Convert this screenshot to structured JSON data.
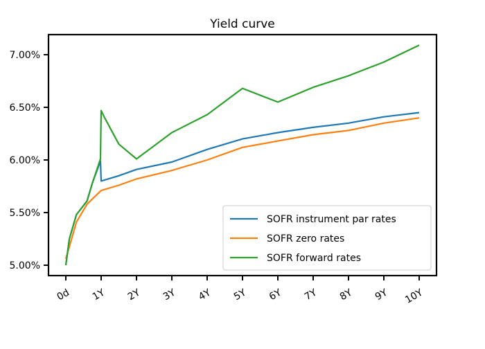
{
  "chart_data": {
    "type": "line",
    "title": "Yield curve",
    "xlabel": "",
    "ylabel": "",
    "x_ticks": [
      0,
      1,
      2,
      3,
      4,
      5,
      6,
      7,
      8,
      9,
      10
    ],
    "x_tick_labels": [
      "0d",
      "1Y",
      "2Y",
      "3Y",
      "4Y",
      "5Y",
      "6Y",
      "7Y",
      "8Y",
      "9Y",
      "10Y"
    ],
    "y_ticks": [
      5.0,
      5.5,
      6.0,
      6.5,
      7.0
    ],
    "y_tick_labels": [
      "5.00%",
      "5.50%",
      "6.00%",
      "6.50%",
      "7.00%"
    ],
    "xlim": [
      -0.45,
      10.5
    ],
    "ylim": [
      4.9,
      7.19
    ],
    "grid": false,
    "legend_position": "lower-right",
    "series": [
      {
        "name": "SOFR instrument par rates",
        "color": "#1f77b4",
        "x": [
          0,
          0.1,
          0.3,
          0.6,
          0.75,
          0.98,
          1.0,
          1.5,
          2,
          3,
          4,
          5,
          6,
          7,
          8,
          9,
          10
        ],
        "y": [
          5.0,
          5.25,
          5.48,
          5.61,
          5.78,
          5.99,
          5.8,
          5.85,
          5.91,
          5.98,
          6.1,
          6.2,
          6.26,
          6.31,
          6.35,
          6.41,
          6.45
        ]
      },
      {
        "name": "SOFR zero rates",
        "color": "#ff7f0e",
        "x": [
          0,
          0.3,
          0.6,
          1.0,
          1.5,
          2,
          3,
          4,
          5,
          6,
          7,
          8,
          9,
          10
        ],
        "y": [
          5.06,
          5.41,
          5.58,
          5.71,
          5.76,
          5.82,
          5.9,
          6.0,
          6.12,
          6.18,
          6.24,
          6.28,
          6.35,
          6.4
        ]
      },
      {
        "name": "SOFR forward rates",
        "color": "#2ca02c",
        "x": [
          0,
          0.1,
          0.3,
          0.6,
          0.75,
          0.98,
          1.0,
          1.1,
          1.5,
          2,
          3,
          4,
          5,
          6,
          7,
          8,
          9,
          10
        ],
        "y": [
          5.0,
          5.25,
          5.48,
          5.61,
          5.78,
          6.01,
          6.47,
          6.4,
          6.15,
          6.01,
          6.26,
          6.43,
          6.68,
          6.55,
          6.69,
          6.8,
          6.93,
          7.09
        ]
      }
    ]
  }
}
